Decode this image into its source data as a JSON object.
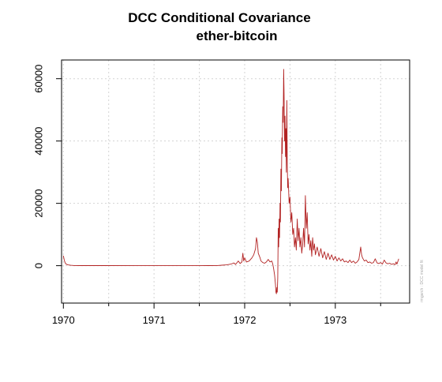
{
  "chart_data": {
    "type": "line",
    "title": "DCC Conditional Covariance",
    "subtitle": "ether-bitcoin",
    "side_note": "rmgarch : DCC model fit",
    "xlabel": "",
    "ylabel": "",
    "x_ticks": [
      "1970",
      "1971",
      "1972",
      "1973"
    ],
    "y_ticks": [
      "0",
      "20000",
      "40000",
      "60000"
    ],
    "xlim": [
      -0.02,
      3.82
    ],
    "ylim": [
      -12000,
      66000
    ],
    "grid": true,
    "series": [
      {
        "color": "#b22222",
        "points": [
          [
            0.0,
            3200
          ],
          [
            0.01,
            1800
          ],
          [
            0.02,
            900
          ],
          [
            0.03,
            500
          ],
          [
            0.05,
            250
          ],
          [
            0.08,
            120
          ],
          [
            0.12,
            60
          ],
          [
            0.2,
            30
          ],
          [
            0.4,
            20
          ],
          [
            0.8,
            15
          ],
          [
            1.2,
            15
          ],
          [
            1.6,
            30
          ],
          [
            1.7,
            60
          ],
          [
            1.75,
            150
          ],
          [
            1.8,
            250
          ],
          [
            1.85,
            500
          ],
          [
            1.88,
            900
          ],
          [
            1.9,
            400
          ],
          [
            1.93,
            1500
          ],
          [
            1.95,
            700
          ],
          [
            1.97,
            1200
          ],
          [
            1.98,
            4000
          ],
          [
            1.99,
            1500
          ],
          [
            2.0,
            2500
          ],
          [
            2.02,
            1200
          ],
          [
            2.05,
            1500
          ],
          [
            2.08,
            2500
          ],
          [
            2.1,
            3500
          ],
          [
            2.12,
            5500
          ],
          [
            2.13,
            9000
          ],
          [
            2.14,
            7500
          ],
          [
            2.15,
            4000
          ],
          [
            2.17,
            2500
          ],
          [
            2.18,
            1500
          ],
          [
            2.2,
            1000
          ],
          [
            2.22,
            800
          ],
          [
            2.24,
            1200
          ],
          [
            2.26,
            2000
          ],
          [
            2.28,
            1200
          ],
          [
            2.3,
            1500
          ],
          [
            2.31,
            500
          ],
          [
            2.32,
            -1000
          ],
          [
            2.33,
            -3000
          ],
          [
            2.34,
            -6000
          ],
          [
            2.345,
            -8500
          ],
          [
            2.35,
            -9000
          ],
          [
            2.355,
            -7000
          ],
          [
            2.36,
            -8500
          ],
          [
            2.365,
            -4000
          ],
          [
            2.37,
            12000
          ],
          [
            2.375,
            6000
          ],
          [
            2.38,
            15000
          ],
          [
            2.385,
            9000
          ],
          [
            2.39,
            20000
          ],
          [
            2.395,
            14000
          ],
          [
            2.4,
            31000
          ],
          [
            2.405,
            24000
          ],
          [
            2.41,
            41000
          ],
          [
            2.415,
            36000
          ],
          [
            2.42,
            51000
          ],
          [
            2.425,
            46000
          ],
          [
            2.43,
            63000
          ],
          [
            2.435,
            55000
          ],
          [
            2.44,
            40000
          ],
          [
            2.445,
            48000
          ],
          [
            2.45,
            35000
          ],
          [
            2.455,
            44000
          ],
          [
            2.46,
            30000
          ],
          [
            2.465,
            53000
          ],
          [
            2.47,
            32000
          ],
          [
            2.475,
            25000
          ],
          [
            2.48,
            28000
          ],
          [
            2.49,
            20000
          ],
          [
            2.5,
            22000
          ],
          [
            2.51,
            14000
          ],
          [
            2.52,
            17000
          ],
          [
            2.53,
            10000
          ],
          [
            2.54,
            12000
          ],
          [
            2.55,
            6000
          ],
          [
            2.56,
            9000
          ],
          [
            2.57,
            5000
          ],
          [
            2.58,
            15000
          ],
          [
            2.59,
            8000
          ],
          [
            2.6,
            12000
          ],
          [
            2.61,
            6000
          ],
          [
            2.62,
            9000
          ],
          [
            2.63,
            4000
          ],
          [
            2.64,
            7000
          ],
          [
            2.65,
            12000
          ],
          [
            2.66,
            6000
          ],
          [
            2.67,
            22500
          ],
          [
            2.68,
            12000
          ],
          [
            2.69,
            17000
          ],
          [
            2.7,
            7000
          ],
          [
            2.71,
            10000
          ],
          [
            2.72,
            5000
          ],
          [
            2.73,
            8000
          ],
          [
            2.74,
            3000
          ],
          [
            2.75,
            9000
          ],
          [
            2.76,
            5000
          ],
          [
            2.77,
            7000
          ],
          [
            2.78,
            3500
          ],
          [
            2.8,
            6000
          ],
          [
            2.82,
            3000
          ],
          [
            2.84,
            5500
          ],
          [
            2.86,
            2500
          ],
          [
            2.88,
            4500
          ],
          [
            2.9,
            2000
          ],
          [
            2.92,
            4000
          ],
          [
            2.94,
            2000
          ],
          [
            2.96,
            3500
          ],
          [
            2.98,
            1800
          ],
          [
            3.0,
            3000
          ],
          [
            3.02,
            1500
          ],
          [
            3.04,
            2500
          ],
          [
            3.06,
            1500
          ],
          [
            3.08,
            2200
          ],
          [
            3.1,
            1200
          ],
          [
            3.12,
            1500
          ],
          [
            3.14,
            1000
          ],
          [
            3.16,
            1800
          ],
          [
            3.18,
            1000
          ],
          [
            3.2,
            1500
          ],
          [
            3.22,
            800
          ],
          [
            3.24,
            1200
          ],
          [
            3.26,
            2000
          ],
          [
            3.27,
            4000
          ],
          [
            3.28,
            6000
          ],
          [
            3.29,
            3500
          ],
          [
            3.3,
            2500
          ],
          [
            3.32,
            1500
          ],
          [
            3.34,
            1800
          ],
          [
            3.36,
            1000
          ],
          [
            3.38,
            1200
          ],
          [
            3.4,
            800
          ],
          [
            3.42,
            1000
          ],
          [
            3.44,
            2200
          ],
          [
            3.46,
            900
          ],
          [
            3.48,
            700
          ],
          [
            3.5,
            1000
          ],
          [
            3.52,
            500
          ],
          [
            3.54,
            1800
          ],
          [
            3.56,
            900
          ],
          [
            3.58,
            600
          ],
          [
            3.6,
            800
          ],
          [
            3.62,
            400
          ],
          [
            3.64,
            600
          ],
          [
            3.66,
            300
          ],
          [
            3.67,
            1200
          ],
          [
            3.68,
            500
          ],
          [
            3.7,
            2200
          ]
        ]
      }
    ]
  }
}
